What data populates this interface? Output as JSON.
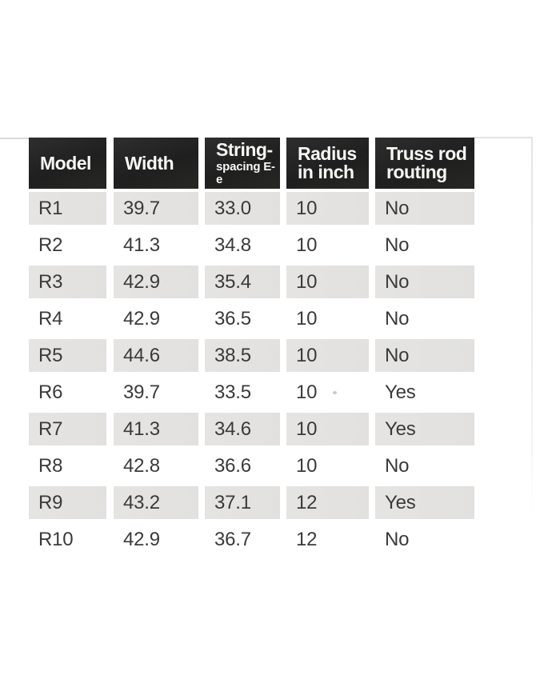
{
  "table": {
    "columns": [
      {
        "lines": [
          "Model"
        ]
      },
      {
        "lines": [
          "Width"
        ]
      },
      {
        "lines": [
          "String-"
        ],
        "subline": "spacing E-e"
      },
      {
        "lines": [
          "Radius",
          "in inch"
        ]
      },
      {
        "lines": [
          "Truss rod",
          "routing"
        ]
      }
    ],
    "rows": [
      {
        "cells": [
          "R1",
          "39.7",
          "33.0",
          "10",
          "No"
        ]
      },
      {
        "cells": [
          "R2",
          "41.3",
          "34.8",
          "10",
          "No"
        ]
      },
      {
        "cells": [
          "R3",
          "42.9",
          "35.4",
          "10",
          "No"
        ]
      },
      {
        "cells": [
          "R4",
          "42.9",
          "36.5",
          "10",
          "No"
        ]
      },
      {
        "cells": [
          "R5",
          "44.6",
          "38.5",
          "10",
          "No"
        ]
      },
      {
        "cells": [
          "R6",
          "39.7",
          "33.5",
          "10",
          "Yes"
        ]
      },
      {
        "cells": [
          "R7",
          "41.3",
          "34.6",
          "10",
          "Yes"
        ]
      },
      {
        "cells": [
          "R8",
          "42.8",
          "36.6",
          "10",
          "No"
        ]
      },
      {
        "cells": [
          "R9",
          "43.2",
          "37.1",
          "12",
          "Yes"
        ]
      },
      {
        "cells": [
          "R10",
          "42.9",
          "36.7",
          "12",
          "No"
        ]
      }
    ]
  },
  "colors": {
    "header_bg": "#262626",
    "header_text": "#f6f6f3",
    "row_shade": "#e4e3e1",
    "body_text": "#3a3a3a",
    "page_bg": "#ffffff"
  }
}
